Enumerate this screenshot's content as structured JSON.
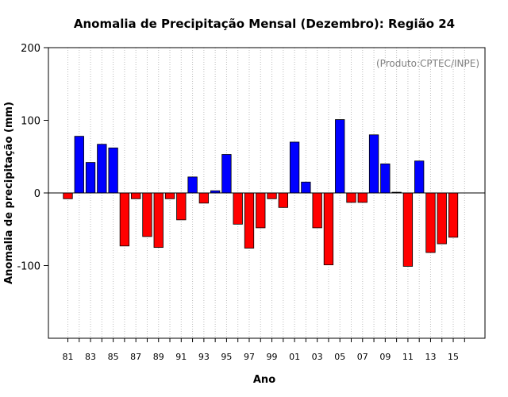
{
  "chart_data": {
    "type": "bar",
    "title": "Anomalia de Precipitação Mensal (Dezembro): Região 24",
    "xlabel": "Ano",
    "ylabel": "Anomalia de precipitação (mm)",
    "annotation": "(Produto:CPTEC/INPE)",
    "ylim": [
      -200,
      200
    ],
    "y_ticks": [
      200,
      100,
      0,
      -100
    ],
    "categories": [
      "81",
      "82",
      "83",
      "84",
      "85",
      "86",
      "87",
      "88",
      "89",
      "90",
      "91",
      "92",
      "93",
      "94",
      "95",
      "96",
      "97",
      "98",
      "99",
      "00",
      "01",
      "02",
      "03",
      "04",
      "05",
      "06",
      "07",
      "08",
      "09",
      "10",
      "11",
      "12",
      "13",
      "14",
      "15"
    ],
    "x_tick_labels": [
      "81",
      "83",
      "85",
      "87",
      "89",
      "91",
      "93",
      "95",
      "97",
      "99",
      "01",
      "03",
      "05",
      "07",
      "09",
      "11",
      "13",
      "15"
    ],
    "values": [
      -8,
      78,
      42,
      67,
      62,
      -73,
      -8,
      -60,
      -75,
      -8,
      -37,
      22,
      -14,
      3,
      53,
      -43,
      -76,
      -48,
      -8,
      -20,
      70,
      15,
      -48,
      -99,
      101,
      -13,
      -13,
      80,
      40,
      1,
      -101,
      44,
      -82,
      -70,
      -61
    ],
    "colors": {
      "positive": "#0000ff",
      "negative": "#ff0000"
    },
    "grid": "vertical dotted",
    "legend": "none"
  }
}
